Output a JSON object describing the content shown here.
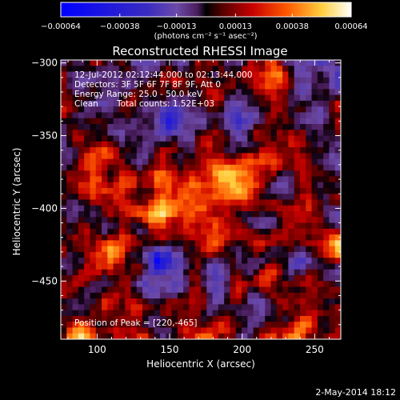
{
  "chart_data": {
    "type": "heatmap",
    "title": "Reconstructed RHESSI Image",
    "xlabel": "Heliocentric X (arcsec)",
    "ylabel": "Heliocentric Y (arcsec)",
    "xlim": [
      75,
      268
    ],
    "ylim": [
      -490,
      -298
    ],
    "x_ticks": [
      "100",
      "150",
      "200",
      "250"
    ],
    "x_tick_values": [
      100,
      150,
      200,
      250
    ],
    "y_ticks": [
      "-300",
      "-350",
      "-400",
      "-450"
    ],
    "y_tick_values": [
      -300,
      -350,
      -400,
      -450
    ],
    "grid": false,
    "colorbar": {
      "position": "top",
      "min": -0.00064,
      "max": 0.00064,
      "tick_labels": [
        "-0.00064",
        "-0.00038",
        "-0.00013",
        "0.00013",
        "0.00038",
        "0.00064"
      ],
      "tick_values": [
        -0.00064,
        -0.00038,
        -0.00013,
        0.00013,
        0.00038,
        0.00064
      ],
      "unit_label": "(photons cm⁻² s⁻¹ asec⁻²)"
    },
    "annotations": {
      "time_range": "12-Jul-2012 02:12:44.000 to 02:13:44.000",
      "detectors": "Detectors: 3F 5F 6F 7F 8F 9F, Att 0",
      "energy": "Energy Range: 25.0 - 50.0 keV",
      "method": "Clean",
      "total_counts": "Total counts: 1.52E+03",
      "peak": "Position of Peak = [220,-465]"
    },
    "peak_position": [
      220,
      -465
    ],
    "grid_cols": 48,
    "grid_rows": 48
  },
  "footer": {
    "date": "2-May-2014 18:12"
  },
  "colors": {
    "background": "#000000",
    "frame": "#ffffff",
    "colormap_negative": [
      "#0000ff",
      "#3a2cc0",
      "#6c4aa8",
      "#7a2a8a"
    ],
    "colormap_positive": [
      "#330000",
      "#8a0000",
      "#e03000",
      "#ff8a00",
      "#ffe066",
      "#ffffff"
    ]
  }
}
